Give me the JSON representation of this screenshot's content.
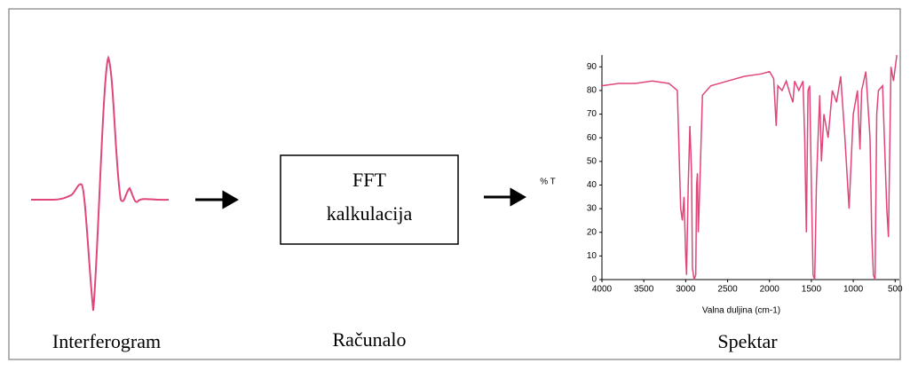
{
  "labels": {
    "interferogram": "Interferogram",
    "computer": "Računalo",
    "spectrum": "Spektar"
  },
  "box": {
    "line1": "FFT",
    "line2": "kalkulacija"
  },
  "chart_data": {
    "type": "line",
    "y_label": "% T",
    "x_label": "Valna duljina  (cm-1)",
    "x": [
      4000,
      3800,
      3600,
      3400,
      3200,
      3100,
      3080,
      3060,
      3040,
      3020,
      3000,
      2990,
      2970,
      2950,
      2930,
      2920,
      2900,
      2880,
      2870,
      2860,
      2850,
      2840,
      2800,
      2700,
      2500,
      2300,
      2100,
      2000,
      1950,
      1920,
      1900,
      1850,
      1800,
      1750,
      1720,
      1700,
      1650,
      1600,
      1580,
      1560,
      1540,
      1520,
      1500,
      1480,
      1460,
      1440,
      1420,
      1400,
      1380,
      1350,
      1300,
      1250,
      1200,
      1150,
      1100,
      1050,
      1000,
      950,
      920,
      900,
      850,
      800,
      780,
      760,
      740,
      720,
      700,
      650,
      600,
      580,
      550,
      520,
      480
    ],
    "series": [
      {
        "color": "#e0457b",
        "values": [
          82,
          83,
          83,
          84,
          83,
          80,
          55,
          30,
          25,
          35,
          10,
          2,
          40,
          65,
          45,
          5,
          0,
          2,
          40,
          45,
          20,
          30,
          78,
          82,
          84,
          86,
          87,
          88,
          85,
          65,
          82,
          80,
          84,
          78,
          75,
          84,
          80,
          84,
          60,
          20,
          80,
          82,
          40,
          2,
          0,
          40,
          60,
          78,
          50,
          70,
          60,
          80,
          75,
          86,
          60,
          30,
          70,
          80,
          55,
          80,
          88,
          60,
          20,
          2,
          0,
          70,
          80,
          82,
          30,
          18,
          90,
          84,
          95
        ]
      }
    ],
    "xlim": [
      4000,
      450
    ],
    "ylim": [
      0,
      95
    ],
    "xticks": [
      4000,
      3500,
      3000,
      2500,
      2000,
      1500,
      1000,
      500
    ],
    "yticks": [
      0,
      10,
      20,
      30,
      40,
      50,
      60,
      70,
      80,
      90
    ]
  }
}
